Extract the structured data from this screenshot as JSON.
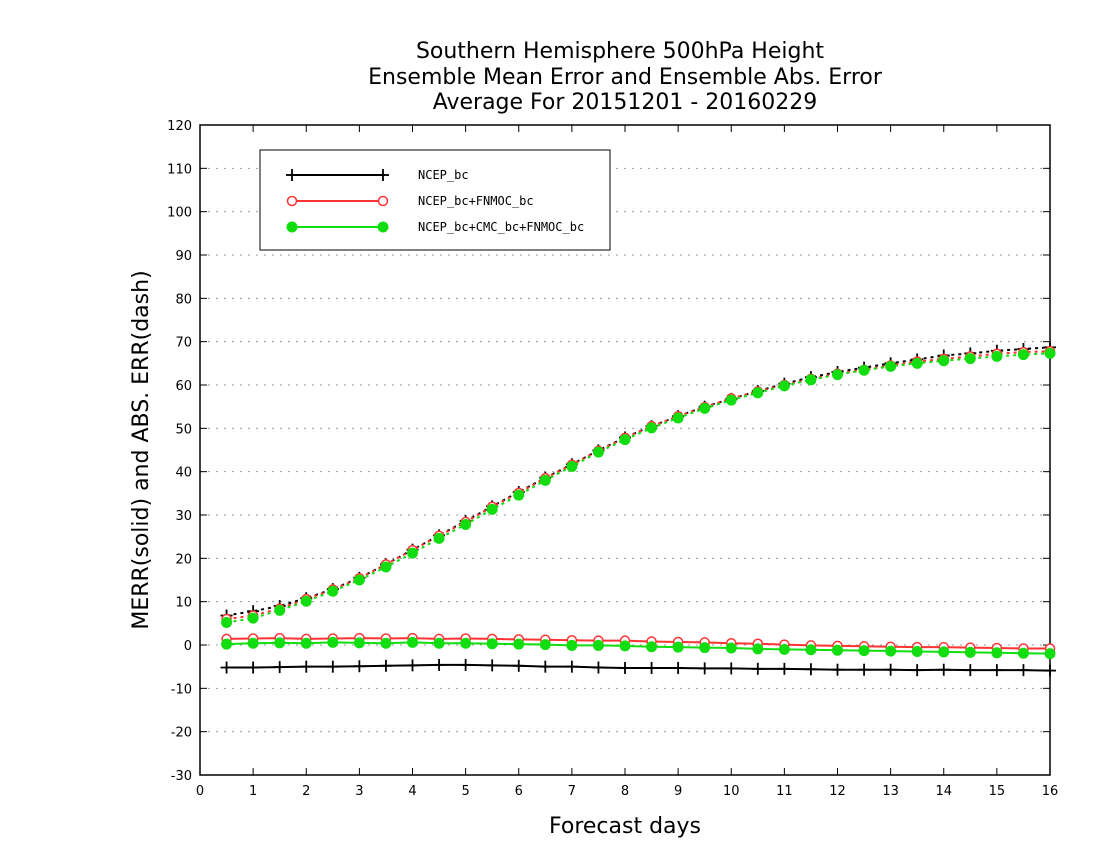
{
  "chart_data": {
    "type": "line",
    "title_lines": [
      "Southern Hemisphere 500hPa Height",
      "Ensemble Mean Error and Ensemble Abs. Error",
      "Average For 20151201 - 20160229"
    ],
    "xlabel": "Forecast days",
    "ylabel": "MERR(solid) and ABS. ERR(dash)",
    "xlim": [
      0,
      16
    ],
    "ylim": [
      -30,
      120
    ],
    "xticks": [
      0,
      1,
      2,
      3,
      4,
      5,
      6,
      7,
      8,
      9,
      10,
      11,
      12,
      13,
      14,
      15,
      16
    ],
    "yticks": [
      -30,
      -20,
      -10,
      0,
      10,
      20,
      30,
      40,
      50,
      60,
      70,
      80,
      90,
      100,
      110,
      120
    ],
    "grid": true,
    "legend_position": "top-left",
    "x": [
      0.5,
      1,
      1.5,
      2,
      2.5,
      3,
      3.5,
      4,
      4.5,
      5,
      5.5,
      6,
      6.5,
      7,
      7.5,
      8,
      8.5,
      9,
      9.5,
      10,
      10.5,
      11,
      11.5,
      12,
      12.5,
      13,
      13.5,
      14,
      14.5,
      15,
      15.5,
      16
    ],
    "series": [
      {
        "name": "NCEP_bc",
        "color": "#000000",
        "marker": "plus",
        "merr": [
          -5.2,
          -5.2,
          -5.1,
          -5.0,
          -5.0,
          -4.9,
          -4.8,
          -4.7,
          -4.6,
          -4.6,
          -4.7,
          -4.8,
          -5.0,
          -5.0,
          -5.2,
          -5.3,
          -5.3,
          -5.3,
          -5.4,
          -5.4,
          -5.5,
          -5.5,
          -5.6,
          -5.7,
          -5.7,
          -5.7,
          -5.8,
          -5.7,
          -5.8,
          -5.8,
          -5.8,
          -5.9
        ],
        "abserr": [
          6.8,
          7.8,
          9.0,
          10.8,
          12.9,
          15.5,
          18.6,
          22.0,
          25.3,
          28.6,
          32.0,
          35.3,
          38.6,
          41.7,
          44.9,
          47.9,
          50.5,
          52.8,
          55.0,
          56.8,
          58.6,
          60.3,
          61.8,
          63.0,
          64.0,
          65.0,
          65.9,
          66.8,
          67.3,
          67.9,
          68.3,
          68.7
        ]
      },
      {
        "name": "NCEP_bc+FNMOC_bc",
        "color": "#ff3333",
        "marker": "open-circle",
        "merr": [
          1.4,
          1.5,
          1.6,
          1.4,
          1.5,
          1.6,
          1.5,
          1.6,
          1.4,
          1.5,
          1.4,
          1.3,
          1.2,
          1.1,
          1.0,
          1.0,
          0.8,
          0.7,
          0.6,
          0.4,
          0.3,
          0.1,
          -0.1,
          -0.2,
          -0.3,
          -0.4,
          -0.5,
          -0.5,
          -0.6,
          -0.7,
          -0.8,
          -0.8
        ],
        "abserr": [
          6.0,
          6.8,
          8.4,
          10.6,
          12.8,
          15.4,
          18.6,
          21.9,
          25.2,
          28.4,
          31.9,
          35.1,
          38.5,
          41.6,
          44.8,
          47.8,
          50.5,
          52.8,
          54.9,
          56.9,
          58.5,
          60.0,
          61.4,
          62.6,
          63.5,
          64.5,
          65.4,
          66.0,
          66.6,
          67.2,
          67.6,
          67.8
        ]
      },
      {
        "name": "NCEP_bc+CMC_bc+FNMOC_bc",
        "color": "#11dd11",
        "marker": "filled-circle",
        "merr": [
          0.2,
          0.4,
          0.5,
          0.4,
          0.6,
          0.5,
          0.4,
          0.6,
          0.4,
          0.4,
          0.3,
          0.2,
          0.1,
          -0.1,
          -0.1,
          -0.2,
          -0.4,
          -0.5,
          -0.6,
          -0.7,
          -0.9,
          -1.0,
          -1.1,
          -1.2,
          -1.3,
          -1.4,
          -1.5,
          -1.6,
          -1.7,
          -1.8,
          -1.9,
          -2.0
        ],
        "abserr": [
          5.2,
          6.2,
          8.0,
          10.1,
          12.4,
          15.0,
          18.0,
          21.2,
          24.6,
          27.8,
          31.3,
          34.6,
          38.0,
          41.2,
          44.5,
          47.4,
          50.1,
          52.4,
          54.6,
          56.5,
          58.2,
          59.8,
          61.2,
          62.4,
          63.4,
          64.3,
          65.0,
          65.6,
          66.1,
          66.6,
          67.0,
          67.3
        ]
      }
    ]
  }
}
